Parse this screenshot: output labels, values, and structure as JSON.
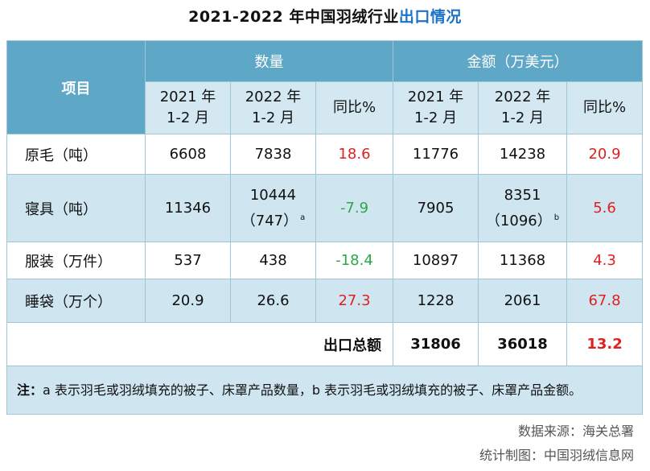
{
  "title_main": "2021-2022 年中国羽绒行业",
  "title_highlight": "出口情况",
  "header": {
    "item": "项目",
    "quantity": "数量",
    "amount": "金额（万美元）",
    "col_2021": "2021 年",
    "col_2022": "2022 年",
    "period": "1-2 月",
    "yoy": "同比%"
  },
  "rows": [
    {
      "name": "原毛（吨）",
      "q2021": "6608",
      "q2022": "7838",
      "q2022_sub": "",
      "q2022_mark": "",
      "qyoy": "18.6",
      "a2021": "11776",
      "a2022": "14238",
      "a2022_sub": "",
      "a2022_mark": "",
      "ayoy": "20.9"
    },
    {
      "name": "寝具（吨）",
      "q2021": "11346",
      "q2022": "10444",
      "q2022_sub": "（747）",
      "q2022_mark": "a",
      "qyoy": "-7.9",
      "a2021": "7905",
      "a2022": "8351",
      "a2022_sub": "（1096）",
      "a2022_mark": "b",
      "ayoy": "5.6"
    },
    {
      "name": "服装（万件）",
      "q2021": "537",
      "q2022": "438",
      "q2022_sub": "",
      "q2022_mark": "",
      "qyoy": "-18.4",
      "a2021": "10897",
      "a2022": "11368",
      "a2022_sub": "",
      "a2022_mark": "",
      "ayoy": "4.3"
    },
    {
      "name": "睡袋（万个）",
      "q2021": "20.9",
      "q2022": "26.6",
      "q2022_sub": "",
      "q2022_mark": "",
      "qyoy": "27.3",
      "a2021": "1228",
      "a2022": "2061",
      "a2022_sub": "",
      "a2022_mark": "",
      "ayoy": "67.8"
    }
  ],
  "total": {
    "label": "出口总额",
    "a2021": "31806",
    "a2022": "36018",
    "ayoy": "13.2"
  },
  "note": {
    "prefix": "注：",
    "text": "a 表示羽毛或羽绒填充的被子、床罩产品数量，b 表示羽毛或羽绒填充的被子、床罩产品金额。"
  },
  "source": "数据来源：海关总署",
  "made_by": "统计制图：中国羽绒信息网",
  "colors": {
    "header": "#5fa7c7",
    "header_light": "#d4e8f2",
    "row_alt": "#cfe6f1",
    "positive": "#e02020",
    "negative": "#2aa84a",
    "title_highlight": "#1e73c8"
  }
}
